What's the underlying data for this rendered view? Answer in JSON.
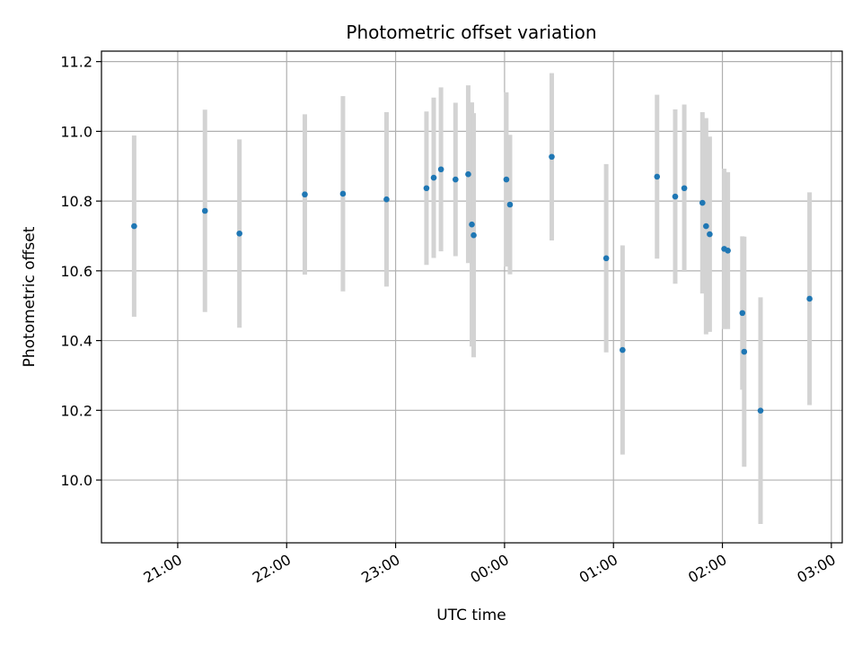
{
  "chart_data": {
    "type": "scatter",
    "title": "Photometric offset variation",
    "xlabel": "UTC time",
    "ylabel": "Photometric offset",
    "x_axis_kind": "time",
    "xlim": [
      "20:18",
      "03:06"
    ],
    "ylim": [
      9.82,
      11.23
    ],
    "x_ticks": [
      "21:00",
      "22:00",
      "23:00",
      "00:00",
      "01:00",
      "02:00",
      "03:00"
    ],
    "y_ticks": [
      "10.0",
      "10.2",
      "10.4",
      "10.6",
      "10.8",
      "11.0",
      "11.2"
    ],
    "grid": true,
    "colors": {
      "point": "#1f77b4",
      "errorbar": "#d3d3d3",
      "grid": "#b0b0b0"
    },
    "series": [
      {
        "points": [
          {
            "x": "20:36",
            "y": 10.728,
            "err": 0.26
          },
          {
            "x": "21:15",
            "y": 10.772,
            "err": 0.29
          },
          {
            "x": "21:34",
            "y": 10.707,
            "err": 0.27
          },
          {
            "x": "22:10",
            "y": 10.819,
            "err": 0.23
          },
          {
            "x": "22:31",
            "y": 10.821,
            "err": 0.28
          },
          {
            "x": "22:55",
            "y": 10.805,
            "err": 0.25
          },
          {
            "x": "23:17",
            "y": 10.837,
            "err": 0.22
          },
          {
            "x": "23:21",
            "y": 10.867,
            "err": 0.23
          },
          {
            "x": "23:25",
            "y": 10.891,
            "err": 0.235
          },
          {
            "x": "23:33",
            "y": 10.862,
            "err": 0.22
          },
          {
            "x": "23:40",
            "y": 10.877,
            "err": 0.255
          },
          {
            "x": "23:42",
            "y": 10.733,
            "err": 0.35
          },
          {
            "x": "23:43",
            "y": 10.702,
            "err": 0.35
          },
          {
            "x": "00:01",
            "y": 10.862,
            "err": 0.25
          },
          {
            "x": "00:03",
            "y": 10.79,
            "err": 0.2
          },
          {
            "x": "00:26",
            "y": 10.927,
            "err": 0.24
          },
          {
            "x": "00:56",
            "y": 10.636,
            "err": 0.27
          },
          {
            "x": "01:05",
            "y": 10.373,
            "err": 0.3
          },
          {
            "x": "01:24",
            "y": 10.87,
            "err": 0.235
          },
          {
            "x": "01:34",
            "y": 10.813,
            "err": 0.25
          },
          {
            "x": "01:39",
            "y": 10.837,
            "err": 0.24
          },
          {
            "x": "01:49",
            "y": 10.795,
            "err": 0.26
          },
          {
            "x": "01:51",
            "y": 10.728,
            "err": 0.31
          },
          {
            "x": "01:53",
            "y": 10.705,
            "err": 0.28
          },
          {
            "x": "02:01",
            "y": 10.663,
            "err": 0.23
          },
          {
            "x": "02:03",
            "y": 10.658,
            "err": 0.225
          },
          {
            "x": "02:11",
            "y": 10.479,
            "err": 0.22
          },
          {
            "x": "02:12",
            "y": 10.368,
            "err": 0.33
          },
          {
            "x": "02:21",
            "y": 10.199,
            "err": 0.325
          },
          {
            "x": "02:48",
            "y": 10.52,
            "err": 0.305
          }
        ]
      }
    ]
  }
}
